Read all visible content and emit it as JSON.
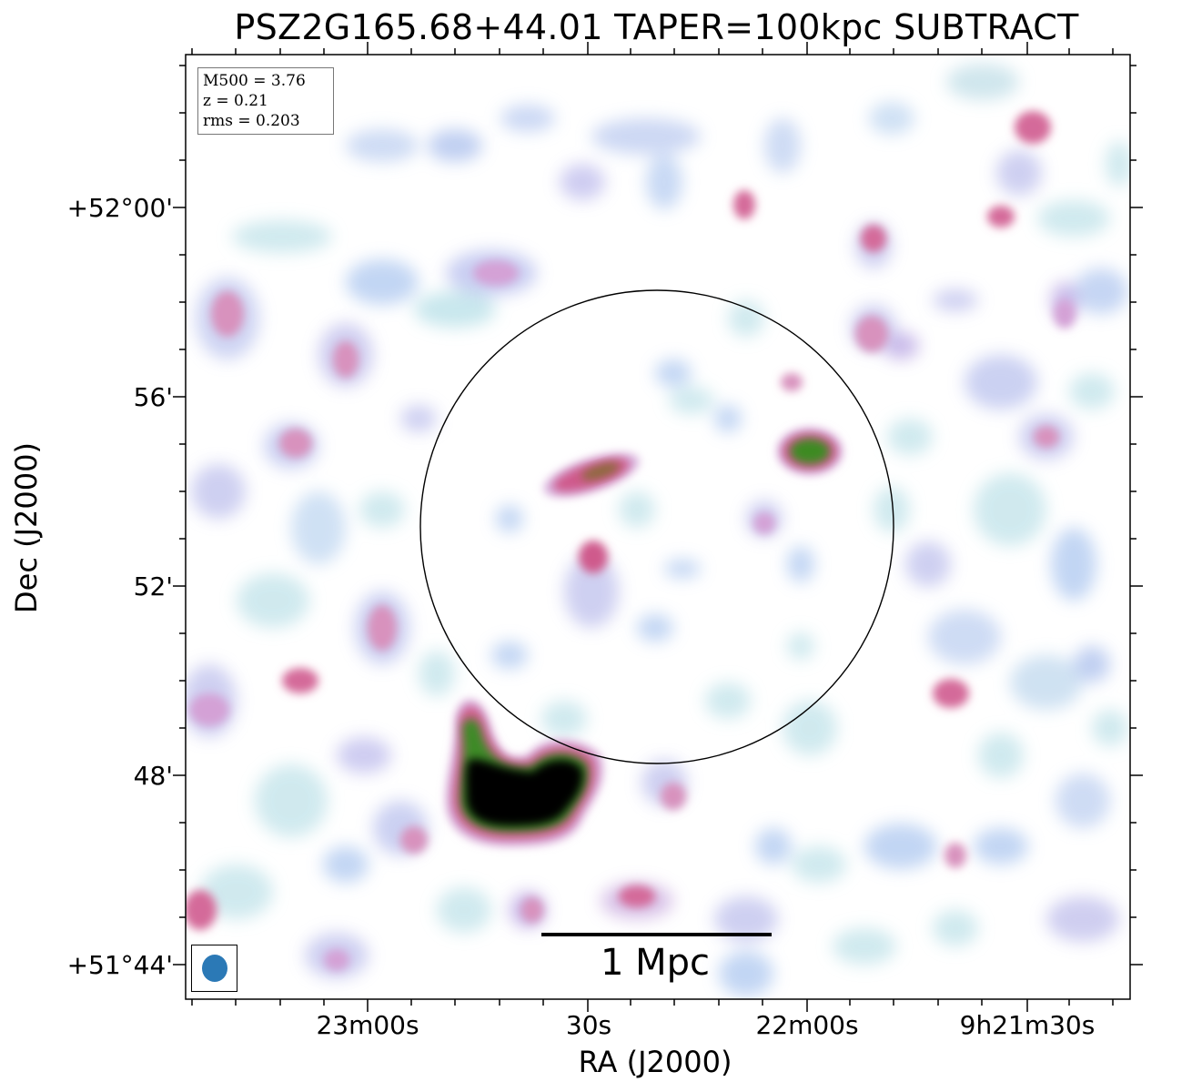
{
  "title": "PSZ2G165.68+44.01 TAPER=100kpc SUBTRACT",
  "info": {
    "mass": "M500 = 3.76",
    "redshift": "z = 0.21",
    "rms": "rms = 0.203"
  },
  "scalebar": {
    "label": "1 Mpc"
  },
  "axes": {
    "xlabel": "RA (J2000)",
    "ylabel": "Dec (J2000)",
    "xticks": [
      "23m00s",
      "30s",
      "22m00s",
      "9h21m30s"
    ],
    "yticks": [
      "+52°00'",
      "56'",
      "52'",
      "48'",
      "+51°44'"
    ]
  },
  "colors": {
    "faint": "#b3c9ef",
    "cyanish": "#bfe7e4",
    "pink": "#d9659a",
    "green": "#3d8a25",
    "core": "#000000",
    "beam": "#2b79b6"
  },
  "image": {
    "colormap": "cubehelix-like (white → cyan/blue → pink → green → black)",
    "beam_icon": "beam-ellipse"
  }
}
